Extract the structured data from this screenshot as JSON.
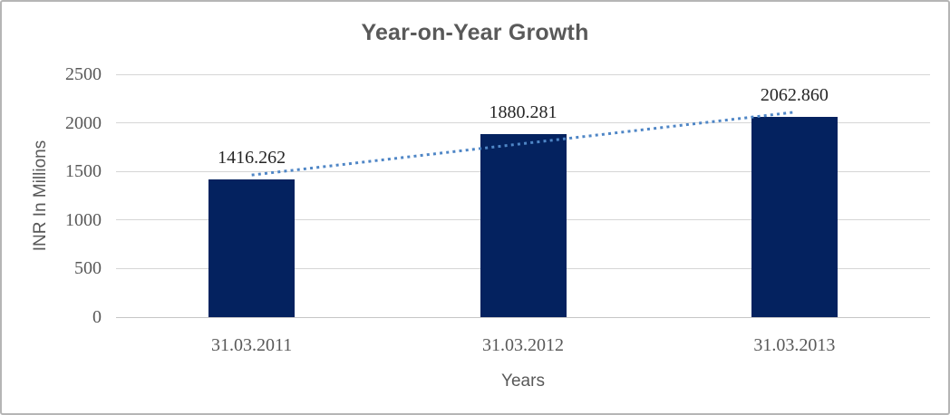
{
  "frame": {
    "background": "#ffffff",
    "border_color": "#b5b5b5"
  },
  "chart_data": {
    "type": "bar",
    "title": "Year-on-Year Growth",
    "xlabel": "Years",
    "ylabel": "INR In Millions",
    "categories": [
      "31.03.2011",
      "31.03.2012",
      "31.03.2013"
    ],
    "values": [
      1416.262,
      1880.281,
      2062.86
    ],
    "data_labels": [
      "1416.262",
      "1880.281",
      "2062.860"
    ],
    "y_ticks": [
      2500,
      2000,
      1500,
      1000,
      500,
      0
    ],
    "ylim": [
      0,
      2500
    ],
    "grid": true,
    "legend": false,
    "trendline": {
      "type": "linear",
      "style": "dotted",
      "color": "#4f86c6"
    },
    "colors": {
      "bar": "#04225f",
      "gridline": "#d6d6d6",
      "axis_line": "#c6c6c6",
      "title_text": "#595959",
      "axis_text": "#595959",
      "data_label_text": "#262626"
    }
  }
}
